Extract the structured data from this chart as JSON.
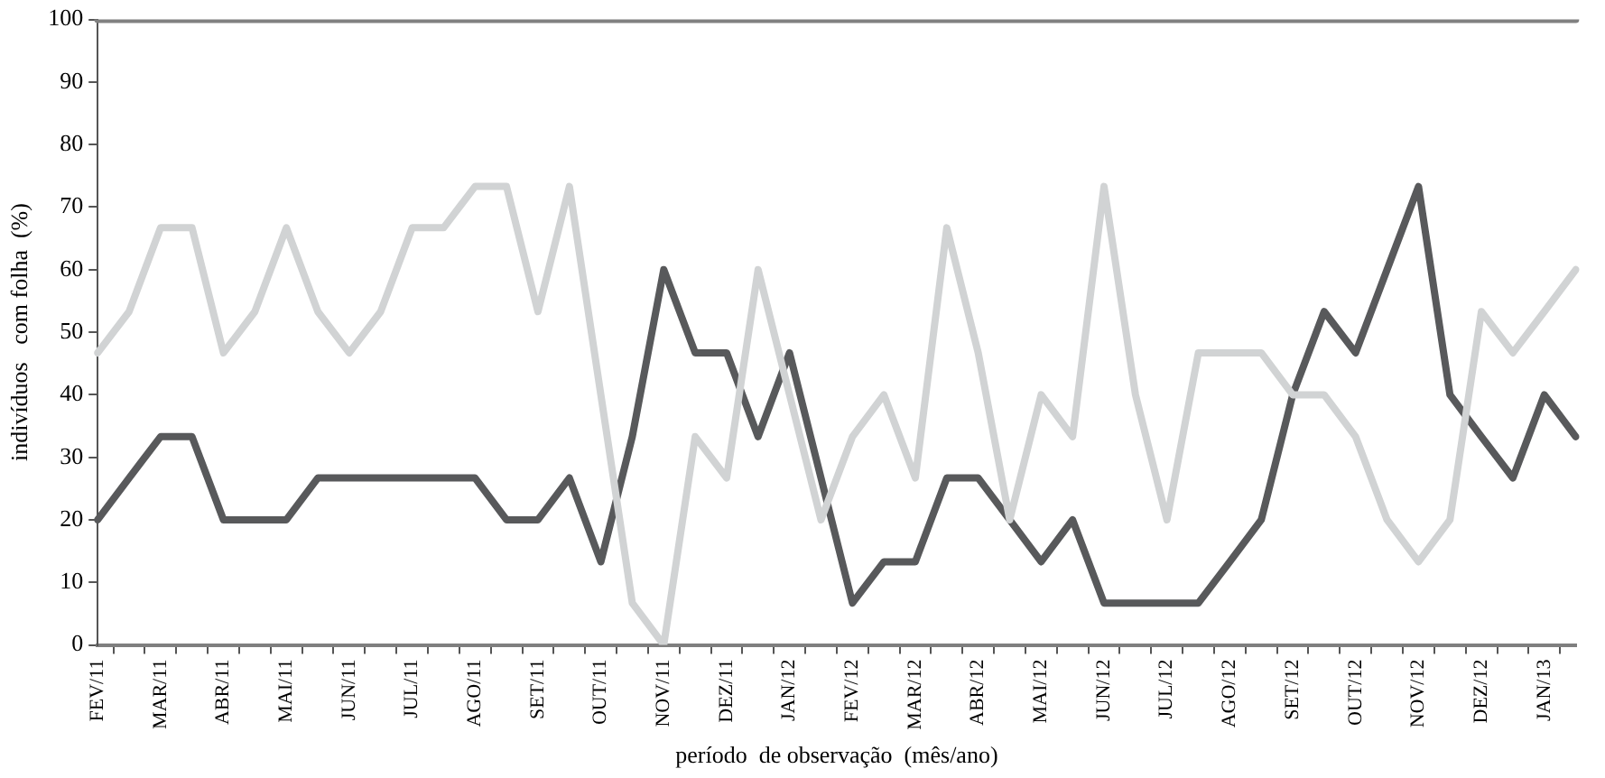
{
  "chart_data": {
    "type": "line",
    "xlabel": "período  de observação  (mês/ano)",
    "ylabel": "indivíduos   com folha  (%)",
    "categories": [
      "FEV/11",
      null,
      "MAR/11",
      null,
      "ABR/11",
      null,
      "MAI/11",
      null,
      "JUN/11",
      null,
      "JUL/11",
      null,
      "AGO/11",
      null,
      "SET/11",
      null,
      "OUT/11",
      null,
      "NOV/11",
      null,
      "DEZ/11",
      null,
      "JAN/12",
      null,
      "FEV/12",
      null,
      "MAR/12",
      null,
      "ABR/12",
      null,
      "MAI/12",
      null,
      "JUN/12",
      null,
      "JUL/12",
      null,
      "AGO/12",
      null,
      "SET/12",
      null,
      "OUT/12",
      null,
      "NOV/12",
      null,
      "DEZ/12",
      null,
      "JAN/13",
      null
    ],
    "series": [
      {
        "color": "#808080",
        "values": [
          100,
          100,
          100,
          100,
          100,
          100,
          100,
          100,
          100,
          100,
          100,
          100,
          100,
          100,
          100,
          100,
          100,
          100,
          100,
          100,
          100,
          100,
          100,
          100,
          100,
          100,
          100,
          100,
          100,
          100,
          100,
          100,
          100,
          100,
          100,
          100,
          100,
          100,
          100,
          100,
          100,
          100,
          100,
          100,
          100,
          100,
          100,
          100
        ]
      },
      {
        "color": "#d1d3d4",
        "values": [
          46.7,
          53.3,
          66.7,
          66.7,
          46.7,
          53.3,
          66.7,
          53.3,
          46.7,
          53.3,
          66.7,
          66.7,
          73.3,
          73.3,
          53.3,
          73.3,
          40,
          6.7,
          0,
          33.3,
          26.7,
          60,
          40,
          20,
          33.3,
          40,
          26.7,
          66.7,
          46.7,
          20,
          40,
          33.3,
          73.3,
          40,
          20,
          46.7,
          46.7,
          46.7,
          40,
          40,
          33.3,
          20,
          13.3,
          20,
          53.3,
          46.7,
          53.3,
          60
        ]
      },
      {
        "color": "#58595b",
        "values": [
          20,
          26.7,
          33.3,
          33.3,
          20,
          20,
          20,
          26.7,
          26.7,
          26.7,
          26.7,
          26.7,
          26.7,
          20,
          20,
          26.7,
          13.3,
          33.3,
          60,
          46.7,
          46.7,
          33.3,
          46.7,
          26.7,
          6.7,
          13.3,
          13.3,
          26.7,
          26.7,
          20,
          13.3,
          20,
          6.7,
          6.7,
          6.7,
          6.7,
          13.3,
          20,
          40,
          53.3,
          46.7,
          60,
          73.3,
          40,
          33.3,
          26.7,
          40,
          33.3
        ]
      }
    ],
    "ylim": [
      0,
      100
    ],
    "yticks": [
      0,
      10,
      20,
      30,
      40,
      50,
      60,
      70,
      80,
      90,
      100
    ],
    "grid": false,
    "legend": false,
    "marker": "none",
    "line_style": "solid"
  }
}
